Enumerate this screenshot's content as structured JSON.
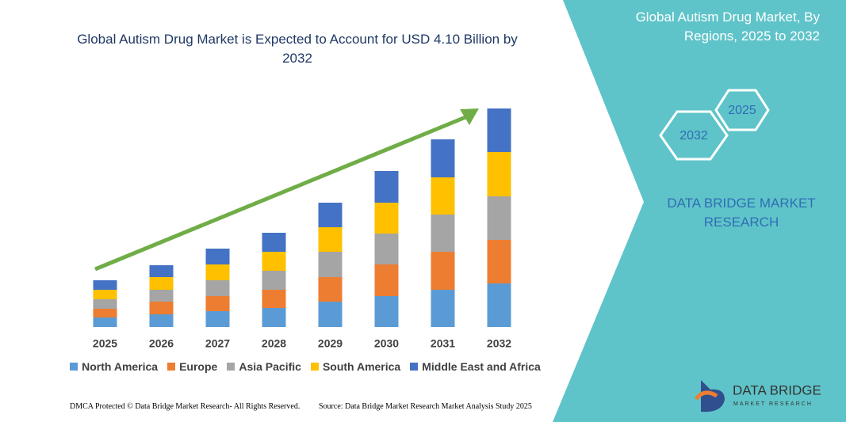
{
  "title": "Global Autism Drug Market is Expected to Account for USD 4.10 Billion by 2032",
  "chart_data": {
    "type": "bar",
    "stacked": true,
    "categories": [
      "2025",
      "2026",
      "2027",
      "2028",
      "2029",
      "2030",
      "2031",
      "2032"
    ],
    "series": [
      {
        "name": "North America",
        "color": "#5b9bd5",
        "values": [
          12,
          16,
          20,
          24,
          32,
          39,
          47,
          55
        ]
      },
      {
        "name": "Europe",
        "color": "#ed7d31",
        "values": [
          11,
          16,
          19,
          23,
          31,
          40,
          48,
          55
        ]
      },
      {
        "name": "Asia Pacific",
        "color": "#a5a5a5",
        "values": [
          12,
          15,
          20,
          24,
          32,
          39,
          47,
          55
        ]
      },
      {
        "name": "South America",
        "color": "#ffc000",
        "values": [
          12,
          16,
          20,
          24,
          31,
          39,
          47,
          56
        ]
      },
      {
        "name": "Middle East and Africa",
        "color": "#4472c4",
        "values": [
          12,
          15,
          20,
          24,
          31,
          40,
          48,
          55
        ]
      }
    ],
    "ylim": [
      0,
      280
    ],
    "legend": "bottom"
  },
  "side_panel": {
    "title": "Global Autism Drug Market, By Regions, 2025 to 2032",
    "hexagons": [
      "2032",
      "2025"
    ],
    "brand": "DATA BRIDGE MARKET RESEARCH"
  },
  "footer": {
    "left": "DMCA Protected © Data Bridge Market Research- All Rights Reserved.",
    "right": "Source: Data Bridge Market Research Market Analysis Study 2025"
  },
  "logo": {
    "name": "DATA BRIDGE",
    "tagline": "MARKET RESEARCH"
  }
}
